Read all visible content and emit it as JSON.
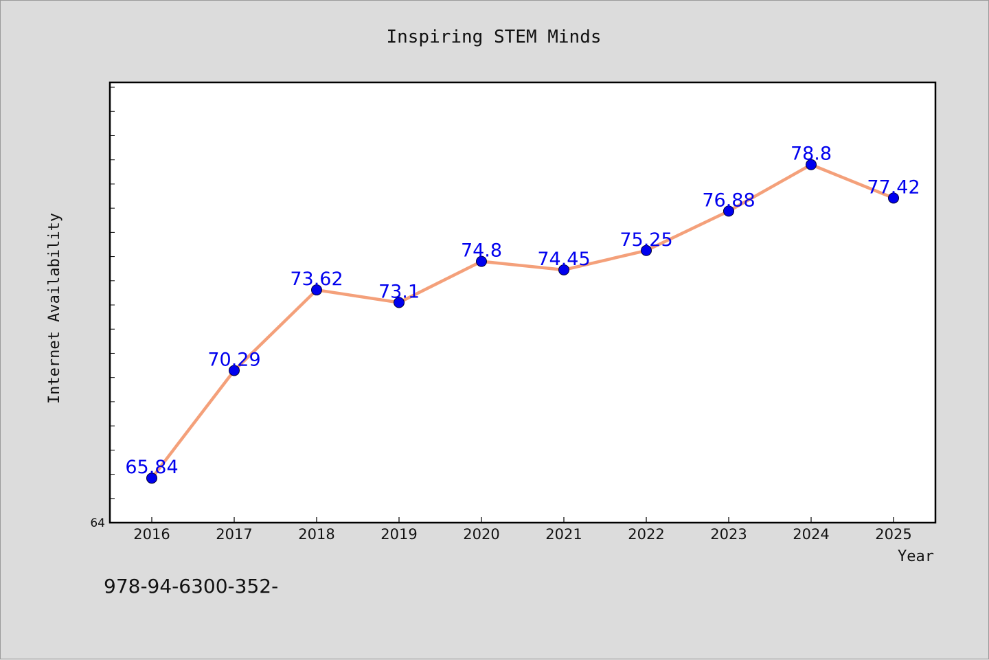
{
  "chart_data": {
    "type": "line",
    "title": "Inspiring STEM Minds",
    "xlabel": "Year",
    "ylabel": "Internet Availability",
    "categories": [
      "2016",
      "2017",
      "2018",
      "2019",
      "2020",
      "2021",
      "2022",
      "2023",
      "2024",
      "2025"
    ],
    "series": [
      {
        "values": [
          65.84,
          70.29,
          73.62,
          73.1,
          74.8,
          74.45,
          75.25,
          76.88,
          78.8,
          77.42
        ],
        "labels": [
          "65.84",
          "70.29",
          "73.62",
          "73.1",
          "74.8",
          "74.45",
          "75.25",
          "76.88",
          "78.8",
          "77.42"
        ]
      }
    ],
    "ylim": [
      64,
      82.2
    ],
    "y_tick_labels": [
      "64"
    ],
    "grid": false,
    "legend": "none",
    "colors": {
      "line": "#f4a07a",
      "marker": "#0000ee",
      "data_label": "#0000ee",
      "background": "#dcdcdc",
      "plot_area": "#ffffff"
    }
  },
  "footer": {
    "code": "978-94-6300-352-"
  }
}
